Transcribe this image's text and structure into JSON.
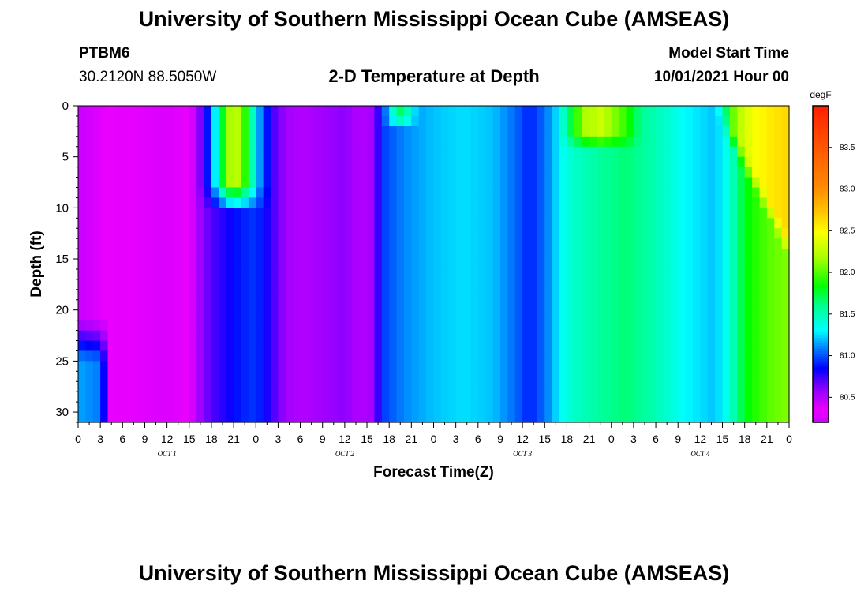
{
  "header": {
    "title": "University of Southern Mississippi Ocean Cube (AMSEAS)",
    "station": "PTBM6",
    "coords": "30.2120N  88.5050W",
    "plot_title": "2-D Temperature at Depth",
    "model_label": "Model Start Time",
    "model_time": "10/01/2021 Hour 00"
  },
  "footer": {
    "title": "University of Southern Mississippi Ocean Cube (AMSEAS)"
  },
  "chart_data": {
    "type": "heatmap",
    "title": "2-D Temperature at Depth",
    "xlabel": "Forecast Time(Z)",
    "ylabel": "Depth (ft)",
    "x_unit": "hours since model start (Z)",
    "x_range": [
      0,
      96
    ],
    "x_tick_labels": [
      "0",
      "3",
      "6",
      "9",
      "12",
      "15",
      "18",
      "21",
      "0",
      "3",
      "6",
      "9",
      "12",
      "15",
      "18",
      "21",
      "0",
      "3",
      "6",
      "9",
      "12",
      "15",
      "18",
      "21",
      "0",
      "3",
      "6",
      "9",
      "12",
      "15",
      "18",
      "21",
      "0"
    ],
    "date_labels": [
      "OCT 1",
      "OCT 2",
      "OCT 3",
      "OCT 4"
    ],
    "y_range": [
      0,
      31
    ],
    "y_inverted": true,
    "y_ticks": [
      0,
      5,
      10,
      15,
      20,
      25,
      30
    ],
    "colorbar": {
      "unit": "degF",
      "range": [
        80.2,
        84.0
      ],
      "ticks": [
        80.5,
        81.0,
        81.5,
        82.0,
        82.5,
        83.0,
        83.5
      ],
      "tick_labels": [
        "80.5",
        "81.0",
        "81.5",
        "82.0",
        "82.5",
        "83.0",
        "83.5"
      ]
    },
    "grid": false
  }
}
